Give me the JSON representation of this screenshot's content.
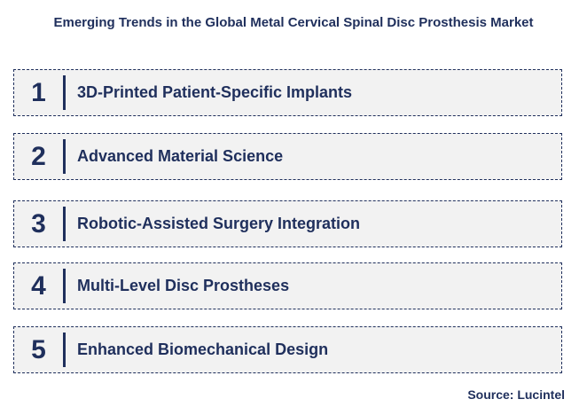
{
  "title": "Emerging Trends in the Global Metal Cervical Spinal Disc Prosthesis Market",
  "trends": [
    {
      "number": "1",
      "label": "3D-Printed Patient-Specific Implants"
    },
    {
      "number": "2",
      "label": "Advanced Material Science"
    },
    {
      "number": "3",
      "label": "Robotic-Assisted Surgery Integration"
    },
    {
      "number": "4",
      "label": "Multi-Level Disc Prostheses"
    },
    {
      "number": "5",
      "label": "Enhanced Biomechanical Design"
    }
  ],
  "source": "Source: Lucintel",
  "colors": {
    "primary": "#1f2f5c",
    "box_fill": "#f2f2f2"
  }
}
